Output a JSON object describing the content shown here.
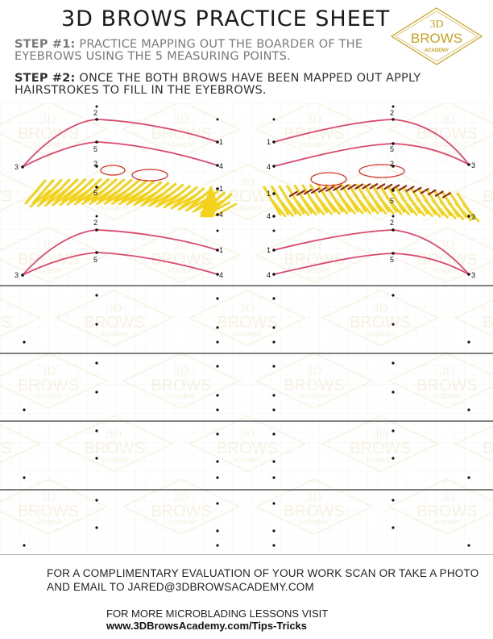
{
  "header": {
    "title": "3D BROWS PRACTICE SHEET",
    "step1_label": "STEP #1:",
    "step1_text": " PRACTICE MAPPING OUT THE BOARDER OF THE EYEBROWS USING THE 5 MEASURING POINTS.",
    "step2_label": "STEP #2:",
    "step2_text": " ONCE THE BOTH BROWS HAVE BEEN MAPPED OUT APPLY HAIRSTROKES TO FILL IN THE EYEBROWS."
  },
  "logo": {
    "line1": "3D",
    "line2": "BROWS",
    "line3": "ACADEMY"
  },
  "watermark": {
    "line1": "3D",
    "line2": "BROWS",
    "line3": "ACADEMY"
  },
  "point_labels": {
    "p1": "1",
    "p2": "2",
    "p3": "3",
    "p4": "4",
    "p5": "5"
  },
  "footer": {
    "evaluation_text": "FOR A COMPLIMENTARY EVALUATION OF YOUR WORK SCAN OR TAKE A PHOTO AND EMAIL TO JARED@3DBROWSACADEMY.COM",
    "lessons_text": "FOR MORE MICROBLADING LESSONS VISIT",
    "lessons_url": "www.3DBrowsAcademy.com/Tips-Tricks"
  },
  "colors": {
    "brow_outline": "#d94a6e",
    "hair_yellow": "#f2d21b",
    "hair_brown": "#8b2a1a",
    "circle_red": "#d8342a",
    "logo_gold": "#c9a227",
    "separator": "#555555"
  }
}
